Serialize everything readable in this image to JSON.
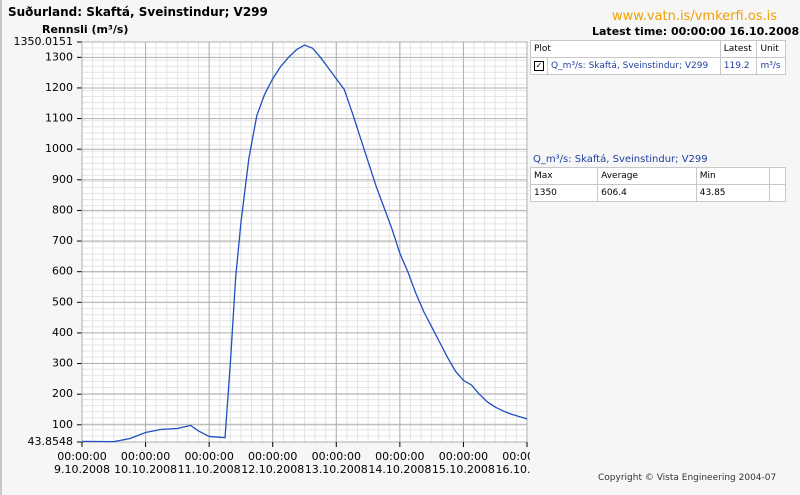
{
  "header": {
    "title": "Suðurland: Skaftá, Sveinstindur; V299",
    "url": "www.vatn.is/vmkerfi.os.is",
    "latest_time": "Latest time: 00:00:00 16.10.2008"
  },
  "chart_data": {
    "type": "line",
    "y_label": "Rennsli (m³/s)",
    "x": [
      "9.10.2008 00:00:00",
      "9.10.2008 12:00:00",
      "9.10.2008 18:00:00",
      "10.10.2008 00:00:00",
      "10.10.2008 06:00:00",
      "10.10.2008 12:00:00",
      "10.10.2008 17:00:00",
      "10.10.2008 20:00:00",
      "11.10.2008 00:00:00",
      "11.10.2008 06:00:00",
      "11.10.2008 08:00:00",
      "11.10.2008 10:00:00",
      "11.10.2008 12:00:00",
      "11.10.2008 15:00:00",
      "11.10.2008 18:00:00",
      "11.10.2008 21:00:00",
      "12.10.2008 00:00:00",
      "12.10.2008 03:00:00",
      "12.10.2008 06:00:00",
      "12.10.2008 09:00:00",
      "12.10.2008 12:00:00",
      "12.10.2008 15:00:00",
      "12.10.2008 18:00:00",
      "12.10.2008 21:00:00",
      "13.10.2008 00:00:00",
      "13.10.2008 03:00:00",
      "13.10.2008 06:00:00",
      "13.10.2008 09:00:00",
      "13.10.2008 12:00:00",
      "13.10.2008 15:00:00",
      "13.10.2008 18:00:00",
      "13.10.2008 21:00:00",
      "14.10.2008 00:00:00",
      "14.10.2008 03:00:00",
      "14.10.2008 06:00:00",
      "14.10.2008 09:00:00",
      "14.10.2008 12:00:00",
      "14.10.2008 15:00:00",
      "14.10.2008 18:00:00",
      "14.10.2008 21:00:00",
      "15.10.2008 00:00:00",
      "15.10.2008 03:00:00",
      "15.10.2008 06:00:00",
      "15.10.2008 09:00:00",
      "15.10.2008 12:00:00",
      "15.10.2008 15:00:00",
      "15.10.2008 18:00:00",
      "15.10.2008 21:00:00",
      "16.10.2008 00:00:00"
    ],
    "series": [
      {
        "name": "Q_m³/s: Skaftá, Sveinstindur; V299",
        "color": "#1f4fc0",
        "values": [
          46,
          45,
          55,
          75,
          85,
          88,
          98,
          80,
          62,
          58,
          300,
          580,
          760,
          970,
          1110,
          1180,
          1230,
          1270,
          1300,
          1325,
          1340,
          1330,
          1300,
          1265,
          1230,
          1195,
          1120,
          1040,
          960,
          880,
          810,
          740,
          660,
          600,
          530,
          470,
          420,
          370,
          320,
          275,
          245,
          230,
          200,
          175,
          158,
          145,
          135,
          127,
          119.2
        ]
      }
    ],
    "xlim": [
      "9.10.2008 00:00:00",
      "16.10.2008 00:00:00"
    ],
    "xticks": [
      {
        "time": "00:00:00",
        "date": "9.10.2008"
      },
      {
        "time": "00:00:00",
        "date": "10.10.2008"
      },
      {
        "time": "00:00:00",
        "date": "11.10.2008"
      },
      {
        "time": "00:00:00",
        "date": "12.10.2008"
      },
      {
        "time": "00:00:00",
        "date": "13.10.2008"
      },
      {
        "time": "00:00:00",
        "date": "14.10.2008"
      },
      {
        "time": "00:00:00",
        "date": "15.10.2008"
      },
      {
        "time": "00:00:00",
        "date": "16.10.2008"
      }
    ],
    "ylim": [
      43.8548,
      1350.0151
    ],
    "yticks": [
      43.8548,
      100,
      200,
      300,
      400,
      500,
      600,
      700,
      800,
      900,
      1000,
      1100,
      1200,
      1300,
      1350.0151
    ],
    "grid": true
  },
  "legend_table": {
    "headers": [
      "Plot",
      "Latest",
      "Unit"
    ],
    "row": [
      "Q_m³/s: Skaftá, Sveinstindur; V299",
      "119.2",
      "m³/s"
    ]
  },
  "stats_table": {
    "title": "Q_m³/s: Skaftá, Sveinstindur; V299",
    "headers": [
      "Max",
      "Average",
      "Min"
    ],
    "row": [
      "1350",
      "606.4",
      "43.85"
    ]
  },
  "footer": "Copyright © Vista Engineering 2004-07"
}
